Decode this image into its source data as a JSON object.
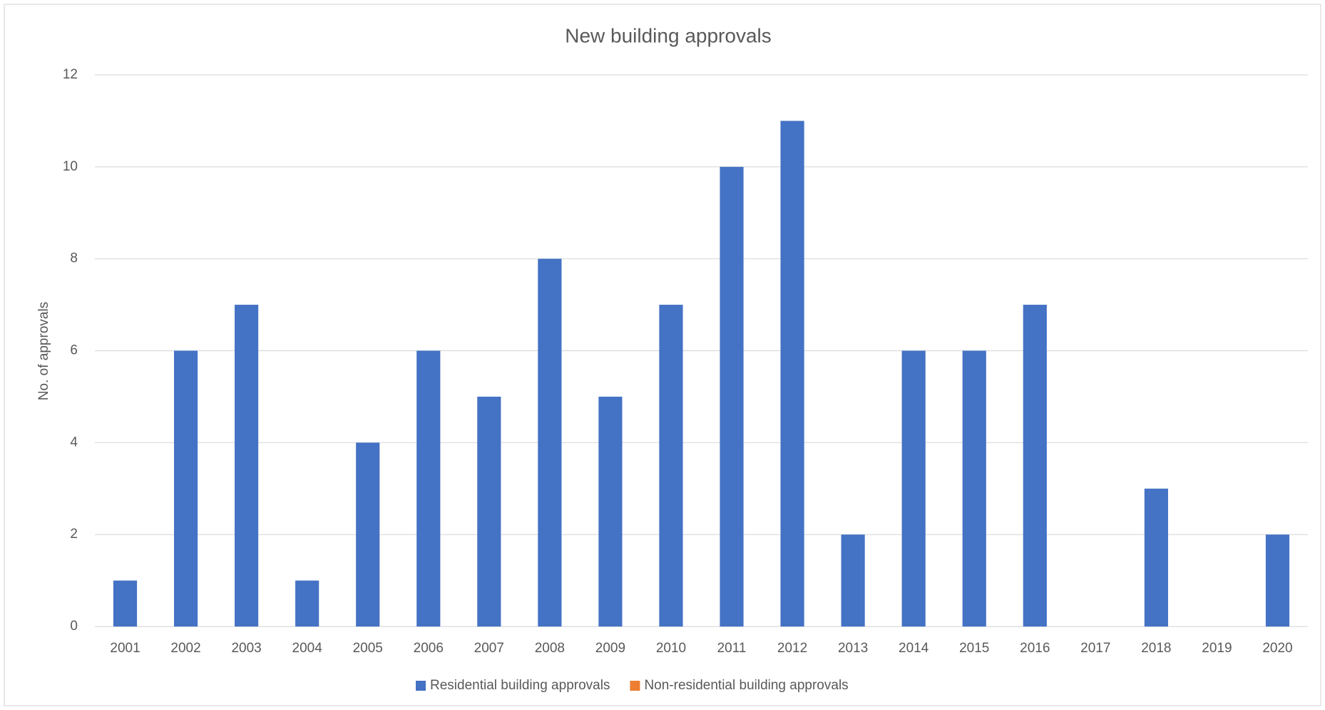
{
  "chart_data": {
    "type": "bar",
    "title": "New building approvals",
    "y_label": "No. of approvals",
    "categories": [
      "2001",
      "2002",
      "2003",
      "2004",
      "2005",
      "2006",
      "2007",
      "2008",
      "2009",
      "2010",
      "2011",
      "2012",
      "2013",
      "2014",
      "2015",
      "2016",
      "2017",
      "2018",
      "2019",
      "2020"
    ],
    "series": [
      {
        "name": "Residential building approvals",
        "color": "#4472c4",
        "values": [
          1,
          6,
          7,
          1,
          4,
          6,
          5,
          8,
          5,
          7,
          10,
          11,
          2,
          6,
          6,
          7,
          0,
          3,
          0,
          2
        ]
      },
      {
        "name": "Non-residential building approvals",
        "color": "#ed7d31",
        "values": [
          0,
          0,
          0,
          0,
          0,
          0,
          0,
          0,
          0,
          0,
          0,
          0,
          0,
          0,
          0,
          0,
          0,
          0,
          0,
          0
        ]
      }
    ],
    "ylim": [
      0,
      12
    ],
    "yticks": [
      0,
      2,
      4,
      6,
      8,
      10,
      12
    ],
    "grid": true,
    "legend": "bottom"
  }
}
